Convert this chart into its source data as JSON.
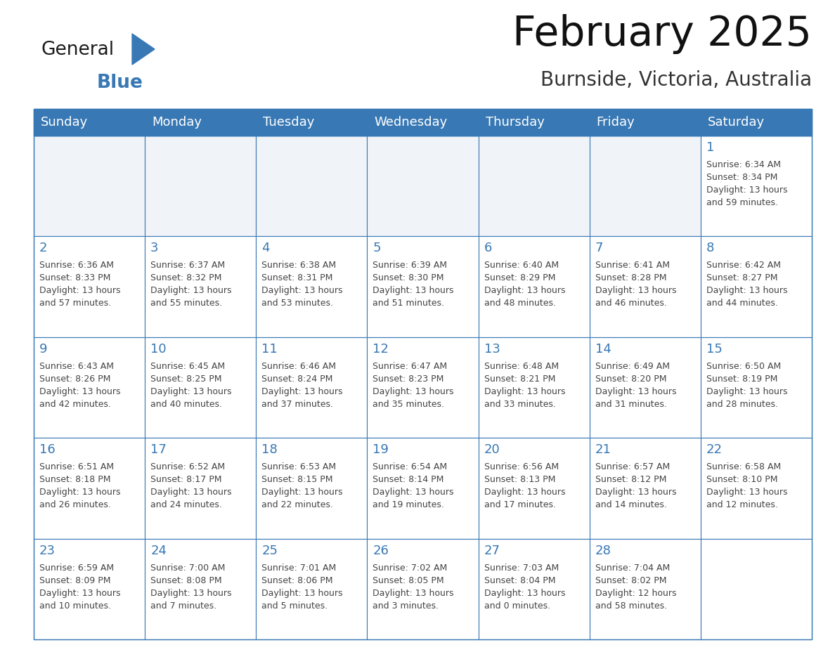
{
  "title": "February 2025",
  "subtitle": "Burnside, Victoria, Australia",
  "header_color": "#3878b4",
  "header_text_color": "#ffffff",
  "cell_bg_color": "#ffffff",
  "alt_row_bg": "#f0f4f8",
  "cell_border_color": "#3878b4",
  "day_num_color": "#3878b4",
  "text_color": "#444444",
  "days_of_week": [
    "Sunday",
    "Monday",
    "Tuesday",
    "Wednesday",
    "Thursday",
    "Friday",
    "Saturday"
  ],
  "logo_general_color": "#1a1a1a",
  "logo_blue_color": "#3878b4",
  "weeks": [
    [
      {
        "day": "",
        "info": ""
      },
      {
        "day": "",
        "info": ""
      },
      {
        "day": "",
        "info": ""
      },
      {
        "day": "",
        "info": ""
      },
      {
        "day": "",
        "info": ""
      },
      {
        "day": "",
        "info": ""
      },
      {
        "day": "1",
        "info": "Sunrise: 6:34 AM\nSunset: 8:34 PM\nDaylight: 13 hours\nand 59 minutes."
      }
    ],
    [
      {
        "day": "2",
        "info": "Sunrise: 6:36 AM\nSunset: 8:33 PM\nDaylight: 13 hours\nand 57 minutes."
      },
      {
        "day": "3",
        "info": "Sunrise: 6:37 AM\nSunset: 8:32 PM\nDaylight: 13 hours\nand 55 minutes."
      },
      {
        "day": "4",
        "info": "Sunrise: 6:38 AM\nSunset: 8:31 PM\nDaylight: 13 hours\nand 53 minutes."
      },
      {
        "day": "5",
        "info": "Sunrise: 6:39 AM\nSunset: 8:30 PM\nDaylight: 13 hours\nand 51 minutes."
      },
      {
        "day": "6",
        "info": "Sunrise: 6:40 AM\nSunset: 8:29 PM\nDaylight: 13 hours\nand 48 minutes."
      },
      {
        "day": "7",
        "info": "Sunrise: 6:41 AM\nSunset: 8:28 PM\nDaylight: 13 hours\nand 46 minutes."
      },
      {
        "day": "8",
        "info": "Sunrise: 6:42 AM\nSunset: 8:27 PM\nDaylight: 13 hours\nand 44 minutes."
      }
    ],
    [
      {
        "day": "9",
        "info": "Sunrise: 6:43 AM\nSunset: 8:26 PM\nDaylight: 13 hours\nand 42 minutes."
      },
      {
        "day": "10",
        "info": "Sunrise: 6:45 AM\nSunset: 8:25 PM\nDaylight: 13 hours\nand 40 minutes."
      },
      {
        "day": "11",
        "info": "Sunrise: 6:46 AM\nSunset: 8:24 PM\nDaylight: 13 hours\nand 37 minutes."
      },
      {
        "day": "12",
        "info": "Sunrise: 6:47 AM\nSunset: 8:23 PM\nDaylight: 13 hours\nand 35 minutes."
      },
      {
        "day": "13",
        "info": "Sunrise: 6:48 AM\nSunset: 8:21 PM\nDaylight: 13 hours\nand 33 minutes."
      },
      {
        "day": "14",
        "info": "Sunrise: 6:49 AM\nSunset: 8:20 PM\nDaylight: 13 hours\nand 31 minutes."
      },
      {
        "day": "15",
        "info": "Sunrise: 6:50 AM\nSunset: 8:19 PM\nDaylight: 13 hours\nand 28 minutes."
      }
    ],
    [
      {
        "day": "16",
        "info": "Sunrise: 6:51 AM\nSunset: 8:18 PM\nDaylight: 13 hours\nand 26 minutes."
      },
      {
        "day": "17",
        "info": "Sunrise: 6:52 AM\nSunset: 8:17 PM\nDaylight: 13 hours\nand 24 minutes."
      },
      {
        "day": "18",
        "info": "Sunrise: 6:53 AM\nSunset: 8:15 PM\nDaylight: 13 hours\nand 22 minutes."
      },
      {
        "day": "19",
        "info": "Sunrise: 6:54 AM\nSunset: 8:14 PM\nDaylight: 13 hours\nand 19 minutes."
      },
      {
        "day": "20",
        "info": "Sunrise: 6:56 AM\nSunset: 8:13 PM\nDaylight: 13 hours\nand 17 minutes."
      },
      {
        "day": "21",
        "info": "Sunrise: 6:57 AM\nSunset: 8:12 PM\nDaylight: 13 hours\nand 14 minutes."
      },
      {
        "day": "22",
        "info": "Sunrise: 6:58 AM\nSunset: 8:10 PM\nDaylight: 13 hours\nand 12 minutes."
      }
    ],
    [
      {
        "day": "23",
        "info": "Sunrise: 6:59 AM\nSunset: 8:09 PM\nDaylight: 13 hours\nand 10 minutes."
      },
      {
        "day": "24",
        "info": "Sunrise: 7:00 AM\nSunset: 8:08 PM\nDaylight: 13 hours\nand 7 minutes."
      },
      {
        "day": "25",
        "info": "Sunrise: 7:01 AM\nSunset: 8:06 PM\nDaylight: 13 hours\nand 5 minutes."
      },
      {
        "day": "26",
        "info": "Sunrise: 7:02 AM\nSunset: 8:05 PM\nDaylight: 13 hours\nand 3 minutes."
      },
      {
        "day": "27",
        "info": "Sunrise: 7:03 AM\nSunset: 8:04 PM\nDaylight: 13 hours\nand 0 minutes."
      },
      {
        "day": "28",
        "info": "Sunrise: 7:04 AM\nSunset: 8:02 PM\nDaylight: 12 hours\nand 58 minutes."
      },
      {
        "day": "",
        "info": ""
      }
    ]
  ]
}
